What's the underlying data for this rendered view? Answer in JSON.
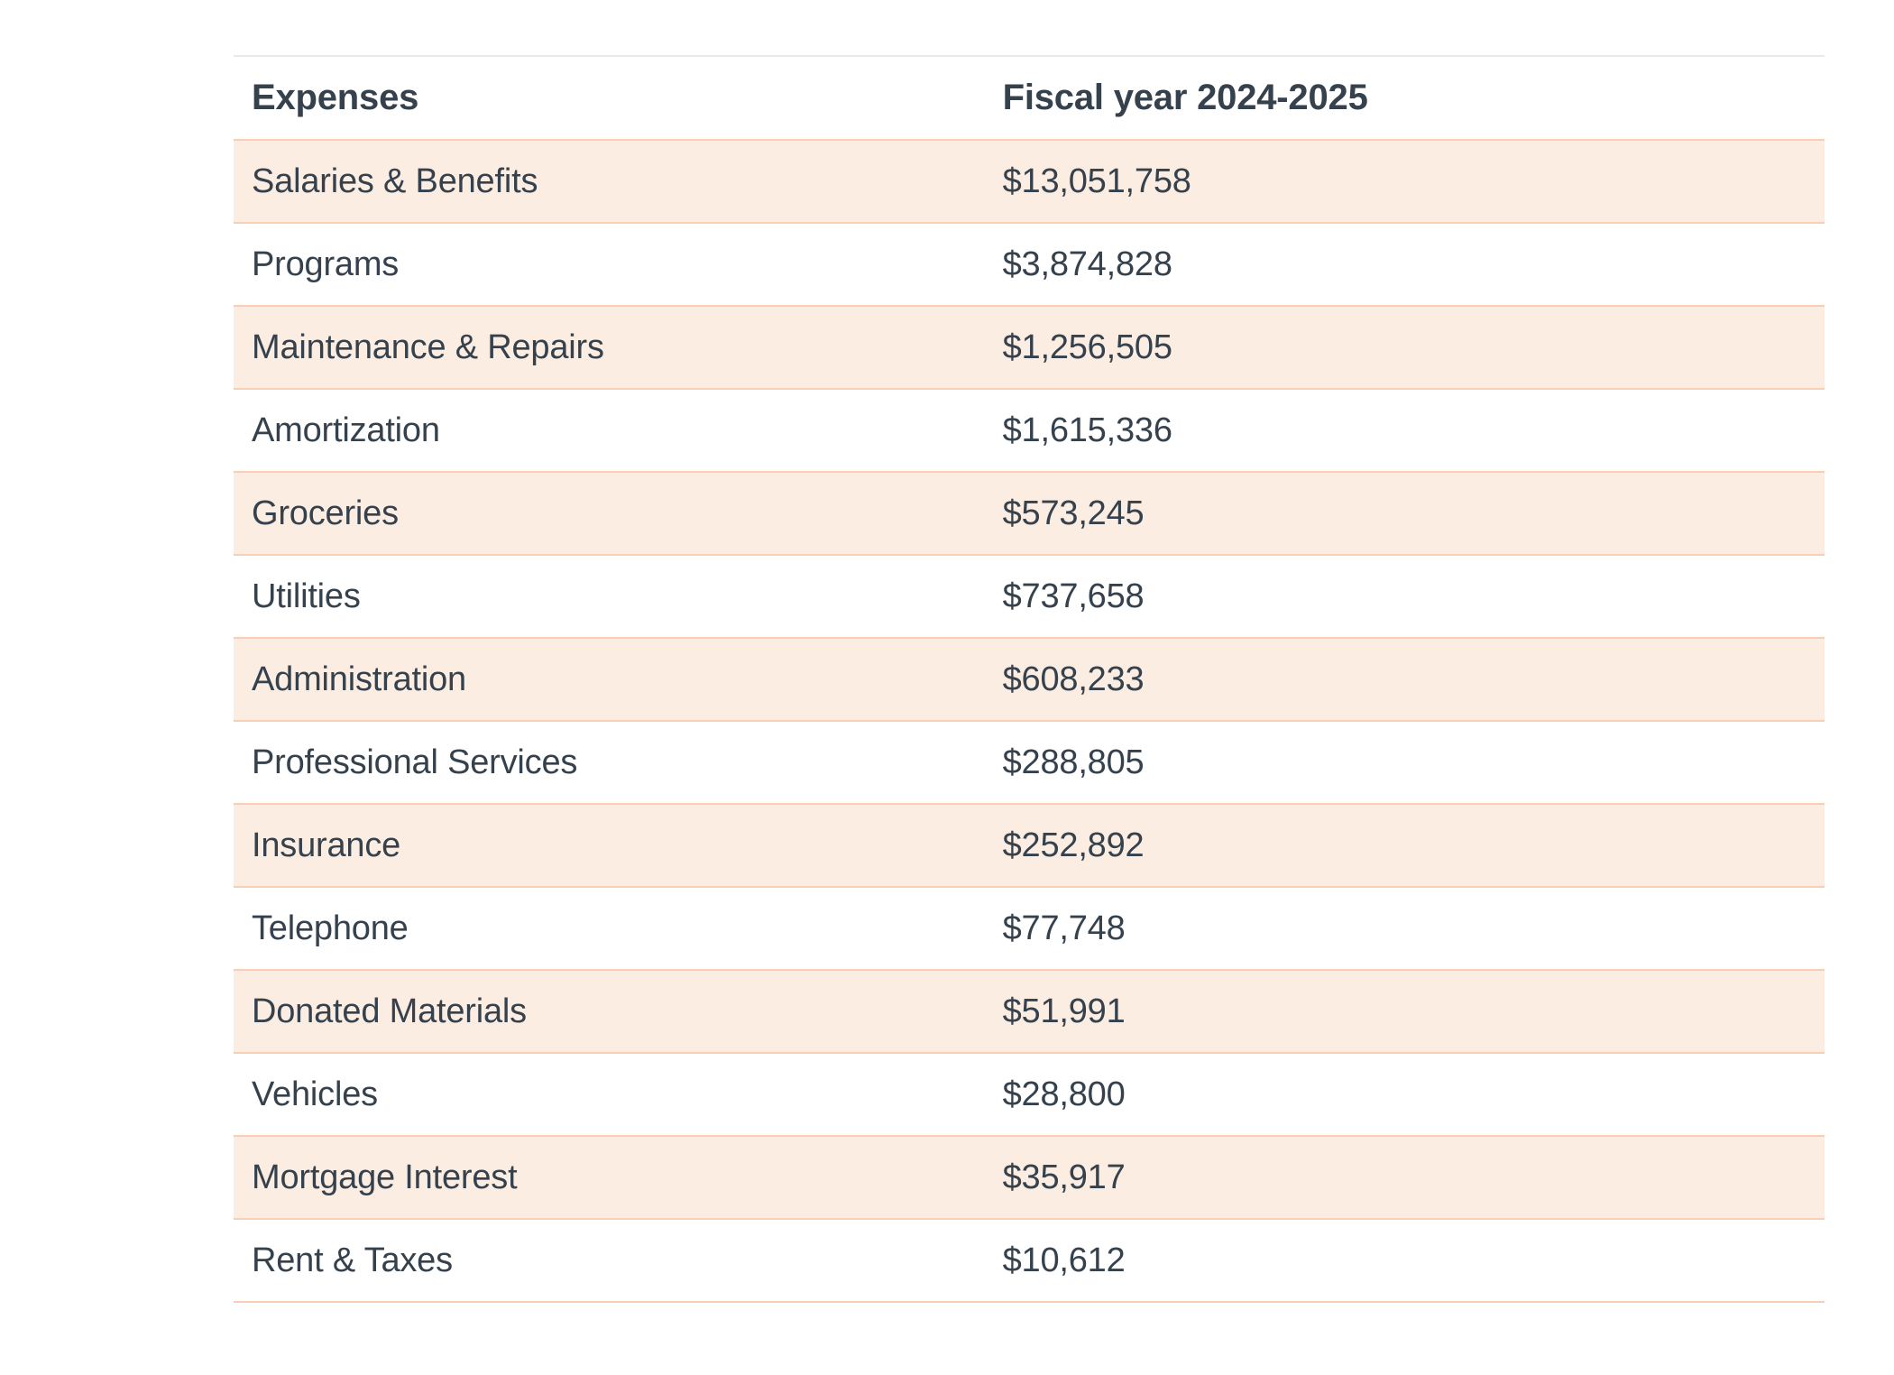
{
  "chart_data": {
    "type": "table",
    "columns": [
      "Expenses",
      "Fiscal year 2024-2025"
    ],
    "rows": [
      {
        "label": "Salaries & Benefits",
        "value": 13051758,
        "display": "$13,051,758"
      },
      {
        "label": "Programs",
        "value": 3874828,
        "display": "$3,874,828"
      },
      {
        "label": "Maintenance & Repairs",
        "value": 1256505,
        "display": "$1,256,505"
      },
      {
        "label": "Amortization",
        "value": 1615336,
        "display": "$1,615,336"
      },
      {
        "label": "Groceries",
        "value": 573245,
        "display": "$573,245"
      },
      {
        "label": "Utilities",
        "value": 737658,
        "display": "$737,658"
      },
      {
        "label": "Administration",
        "value": 608233,
        "display": "$608,233"
      },
      {
        "label": "Professional Services",
        "value": 288805,
        "display": "$288,805"
      },
      {
        "label": "Insurance",
        "value": 252892,
        "display": "$252,892"
      },
      {
        "label": "Telephone",
        "value": 77748,
        "display": "$77,748"
      },
      {
        "label": "Donated Materials",
        "value": 51991,
        "display": "$51,991"
      },
      {
        "label": "Vehicles",
        "value": 28800,
        "display": "$28,800"
      },
      {
        "label": "Mortgage Interest",
        "value": 35917,
        "display": "$35,917"
      },
      {
        "label": "Rent & Taxes",
        "value": 10612,
        "display": "$10,612"
      }
    ],
    "layout": {
      "zebra_striping": true,
      "first_data_row_highlighted": true,
      "value_alignment": "left"
    }
  },
  "colors": {
    "text": "#35414C",
    "row_highlight_bg": "#FCEDE3",
    "row_border": "#F8CFB4",
    "header_top_border": "#E9E9EB",
    "background": "#FFFFFF"
  }
}
